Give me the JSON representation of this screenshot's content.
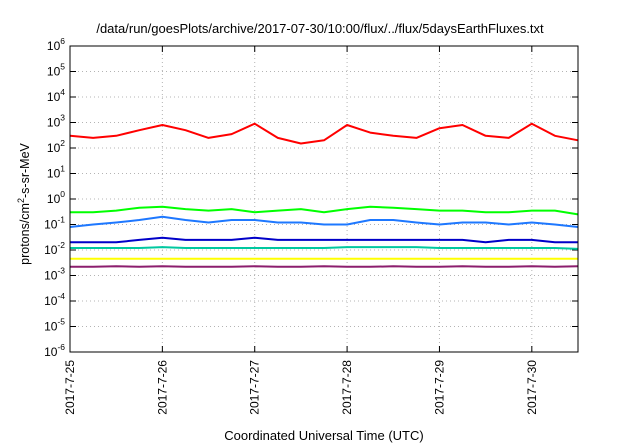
{
  "chart_data": {
    "type": "line",
    "title": "/data/run/goesPlots/archive/2017-07-30/10:00/flux/../flux/5daysEarthFluxes.txt",
    "xlabel": "Coordinated Universal Time (UTC)",
    "ylabel": {
      "pre": "protons/cm",
      "sup": "2",
      "post": "-s-sr-MeV"
    },
    "x_range": [
      "2017-07-25",
      "2017-07-30 12:00"
    ],
    "ylim": [
      1e-06,
      1000000.0
    ],
    "yscale": "log",
    "grid": true,
    "x_ticks": [
      "2017-7-25",
      "2017-7-26",
      "2017-7-27",
      "2017-7-28",
      "2017-7-29",
      "2017-7-30"
    ],
    "y_ticks": [
      {
        "base": "10",
        "exp": "-6"
      },
      {
        "base": "10",
        "exp": "-5"
      },
      {
        "base": "10",
        "exp": "-4"
      },
      {
        "base": "10",
        "exp": "-3"
      },
      {
        "base": "10",
        "exp": "-2"
      },
      {
        "base": "10",
        "exp": "-1"
      },
      {
        "base": "10",
        "exp": "0"
      },
      {
        "base": "10",
        "exp": "1"
      },
      {
        "base": "10",
        "exp": "2"
      },
      {
        "base": "10",
        "exp": "3"
      },
      {
        "base": "10",
        "exp": "4"
      },
      {
        "base": "10",
        "exp": "5"
      },
      {
        "base": "10",
        "exp": "6"
      }
    ],
    "x": [
      "2017-07-25 00:00",
      "2017-07-25 06:00",
      "2017-07-25 12:00",
      "2017-07-25 18:00",
      "2017-07-26 00:00",
      "2017-07-26 06:00",
      "2017-07-26 12:00",
      "2017-07-26 18:00",
      "2017-07-27 00:00",
      "2017-07-27 06:00",
      "2017-07-27 12:00",
      "2017-07-27 18:00",
      "2017-07-28 00:00",
      "2017-07-28 06:00",
      "2017-07-28 12:00",
      "2017-07-28 18:00",
      "2017-07-29 00:00",
      "2017-07-29 06:00",
      "2017-07-29 12:00",
      "2017-07-29 18:00",
      "2017-07-30 00:00",
      "2017-07-30 06:00",
      "2017-07-30 12:00"
    ],
    "series": [
      {
        "color": "#ff0000",
        "values": [
          300,
          250,
          300,
          500,
          800,
          500,
          250,
          350,
          900,
          250,
          150,
          200,
          800,
          400,
          300,
          250,
          600,
          800,
          300,
          250,
          900,
          300,
          200
        ]
      },
      {
        "color": "#00ff00",
        "values": [
          0.3,
          0.3,
          0.35,
          0.45,
          0.5,
          0.4,
          0.35,
          0.4,
          0.3,
          0.35,
          0.4,
          0.3,
          0.4,
          0.5,
          0.45,
          0.4,
          0.35,
          0.35,
          0.3,
          0.3,
          0.35,
          0.35,
          0.25
        ]
      },
      {
        "color": "#1e78ff",
        "values": [
          0.08,
          0.1,
          0.12,
          0.15,
          0.2,
          0.15,
          0.12,
          0.15,
          0.15,
          0.12,
          0.12,
          0.1,
          0.1,
          0.15,
          0.15,
          0.12,
          0.1,
          0.12,
          0.12,
          0.1,
          0.12,
          0.1,
          0.08
        ]
      },
      {
        "color": "#0000c8",
        "values": [
          0.02,
          0.02,
          0.02,
          0.025,
          0.03,
          0.025,
          0.025,
          0.025,
          0.03,
          0.025,
          0.025,
          0.025,
          0.025,
          0.025,
          0.025,
          0.025,
          0.025,
          0.025,
          0.02,
          0.025,
          0.025,
          0.02,
          0.02
        ]
      },
      {
        "color": "#00c8a0",
        "values": [
          0.012,
          0.012,
          0.012,
          0.012,
          0.013,
          0.012,
          0.012,
          0.012,
          0.012,
          0.012,
          0.012,
          0.012,
          0.013,
          0.013,
          0.013,
          0.013,
          0.012,
          0.012,
          0.012,
          0.012,
          0.012,
          0.012,
          0.011
        ]
      },
      {
        "color": "#ffff00",
        "values": [
          0.0045,
          0.0045,
          0.0045,
          0.0045,
          0.0045,
          0.0045,
          0.0045,
          0.0045,
          0.0045,
          0.0045,
          0.0045,
          0.0045,
          0.0045,
          0.0045,
          0.0045,
          0.0045,
          0.0045,
          0.0045,
          0.0045,
          0.0045,
          0.0045,
          0.0045,
          0.0045
        ]
      },
      {
        "color": "#8c1e6e",
        "values": [
          0.0022,
          0.0022,
          0.0023,
          0.0022,
          0.0023,
          0.0022,
          0.0022,
          0.0022,
          0.0023,
          0.0022,
          0.0022,
          0.0023,
          0.0022,
          0.0022,
          0.0023,
          0.0022,
          0.0022,
          0.0023,
          0.0022,
          0.0022,
          0.0023,
          0.0022,
          0.0023
        ]
      }
    ]
  }
}
